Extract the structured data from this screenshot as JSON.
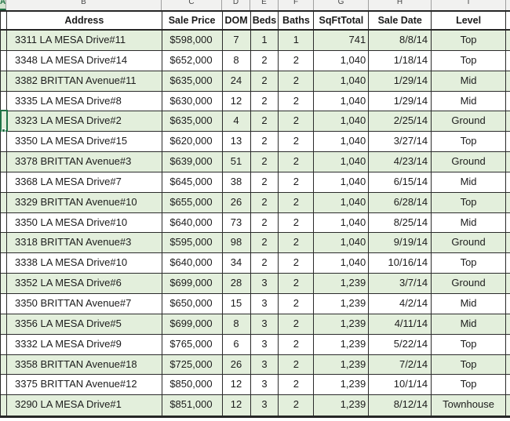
{
  "colors": {
    "band_green": "#e3efdc",
    "selection_green": "#217346",
    "grid_line": "#2b2b2b",
    "strip_background": "#f1f1f0",
    "corner_highlight": "#d4e5d0",
    "text": "#1c1c1c"
  },
  "sheet": {
    "corner_column_label": "A",
    "column_letters": [
      "B",
      "C",
      "D",
      "E",
      "F",
      "G",
      "H",
      "I"
    ],
    "selection": {
      "column_letter": "A",
      "data_row_index": 5,
      "adjacent_address": "3323 LA MESA Drive#2"
    }
  },
  "table": {
    "headers": [
      "Address",
      "Sale Price",
      "DOM",
      "Beds",
      "Baths",
      "SqFtTotal",
      "Sale Date",
      "Level"
    ],
    "rows": [
      [
        "3311 LA MESA Drive#11",
        "$598,000",
        "7",
        "1",
        "1",
        "741",
        "8/8/14",
        "Top"
      ],
      [
        "3348 LA MESA Drive#14",
        "$652,000",
        "8",
        "2",
        "2",
        "1,040",
        "1/18/14",
        "Top"
      ],
      [
        "3382 BRITTAN Avenue#11",
        "$635,000",
        "24",
        "2",
        "2",
        "1,040",
        "1/29/14",
        "Mid"
      ],
      [
        "3335 LA MESA Drive#8",
        "$630,000",
        "12",
        "2",
        "2",
        "1,040",
        "1/29/14",
        "Mid"
      ],
      [
        "3323 LA MESA Drive#2",
        "$635,000",
        "4",
        "2",
        "2",
        "1,040",
        "2/25/14",
        "Ground"
      ],
      [
        "3350 LA MESA Drive#15",
        "$620,000",
        "13",
        "2",
        "2",
        "1,040",
        "3/27/14",
        "Top"
      ],
      [
        "3378 BRITTAN Avenue#3",
        "$639,000",
        "51",
        "2",
        "2",
        "1,040",
        "4/23/14",
        "Ground"
      ],
      [
        "3368 LA MESA Drive#7",
        "$645,000",
        "38",
        "2",
        "2",
        "1,040",
        "6/15/14",
        "Mid"
      ],
      [
        "3329 BRITTAN Avenue#10",
        "$655,000",
        "26",
        "2",
        "2",
        "1,040",
        "6/28/14",
        "Top"
      ],
      [
        "3350 LA MESA Drive#10",
        "$640,000",
        "73",
        "2",
        "2",
        "1,040",
        "8/25/14",
        "Mid"
      ],
      [
        "3318 BRITTAN Avenue#3",
        "$595,000",
        "98",
        "2",
        "2",
        "1,040",
        "9/19/14",
        "Ground"
      ],
      [
        "3338 LA MESA Drive#10",
        "$640,000",
        "34",
        "2",
        "2",
        "1,040",
        "10/16/14",
        "Top"
      ],
      [
        "3352 LA MESA Drive#6",
        "$699,000",
        "28",
        "3",
        "2",
        "1,239",
        "3/7/14",
        "Ground"
      ],
      [
        "3350 BRITTAN Avenue#7",
        "$650,000",
        "15",
        "3",
        "2",
        "1,239",
        "4/2/14",
        "Mid"
      ],
      [
        "3356 LA MESA Drive#5",
        "$699,000",
        "8",
        "3",
        "2",
        "1,239",
        "4/11/14",
        "Mid"
      ],
      [
        "3332 LA MESA Drive#9",
        "$765,000",
        "6",
        "3",
        "2",
        "1,239",
        "5/22/14",
        "Top"
      ],
      [
        "3358 BRITTAN Avenue#18",
        "$725,000",
        "26",
        "3",
        "2",
        "1,239",
        "7/2/14",
        "Top"
      ],
      [
        "3375 BRITTAN Avenue#12",
        "$850,000",
        "12",
        "3",
        "2",
        "1,239",
        "10/1/14",
        "Top"
      ],
      [
        "3290 LA MESA Drive#1",
        "$851,000",
        "12",
        "3",
        "2",
        "1,239",
        "8/12/14",
        "Townhouse"
      ]
    ]
  }
}
